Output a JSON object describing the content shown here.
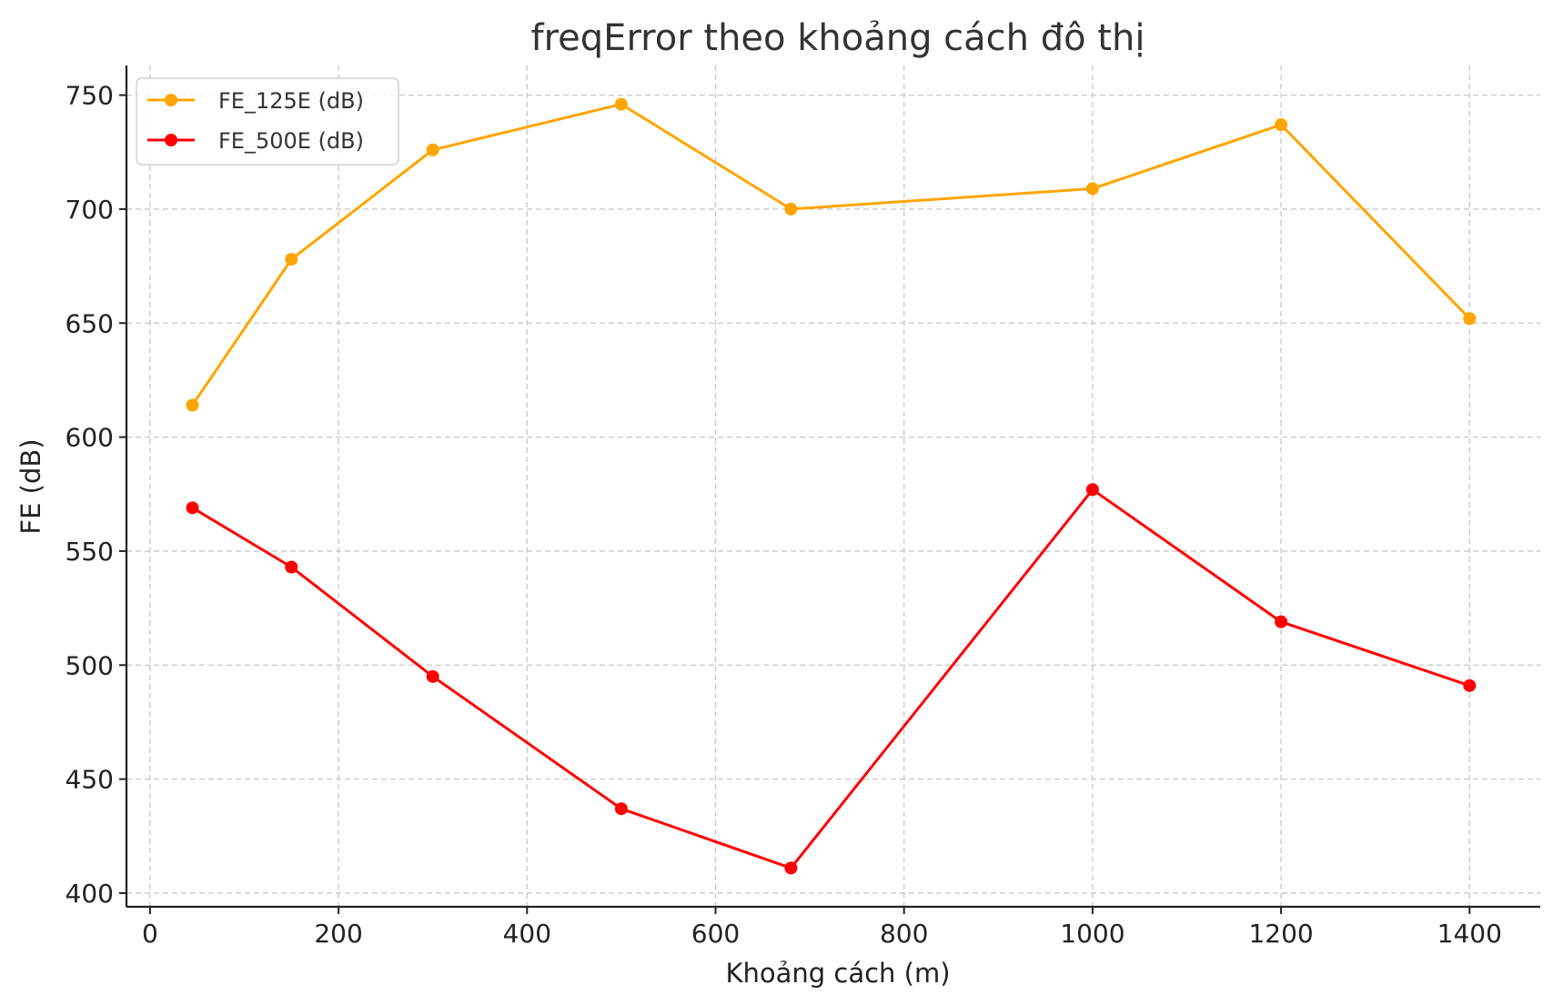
{
  "chart_data": {
    "type": "line",
    "title": "freqError theo khoảng cách đô thị",
    "xlabel": "Khoảng cách (m)",
    "ylabel": "FE (dB)",
    "xlim": [
      -25,
      1475
    ],
    "ylim": [
      394,
      763
    ],
    "xticks": [
      0,
      200,
      400,
      600,
      800,
      1000,
      1200,
      1400
    ],
    "yticks": [
      400,
      450,
      500,
      550,
      600,
      650,
      700,
      750
    ],
    "grid": true,
    "legend_position": "top-left",
    "x": [
      45,
      150,
      300,
      500,
      680,
      1000,
      1200,
      1400
    ],
    "series": [
      {
        "name": "FE_125E (dB)",
        "color": "#FFA500",
        "values": [
          614,
          678,
          726,
          746,
          700,
          709,
          737,
          652
        ]
      },
      {
        "name": "FE_500E (dB)",
        "color": "#FF0000",
        "values": [
          569,
          543,
          495,
          437,
          411,
          577,
          519,
          491
        ]
      }
    ]
  }
}
